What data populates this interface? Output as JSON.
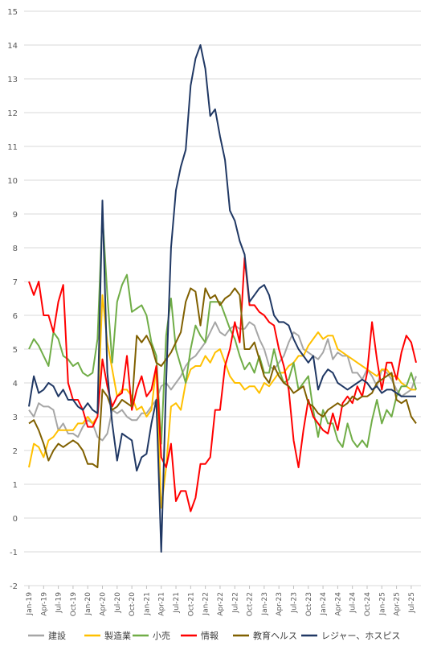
{
  "chart_data": {
    "type": "line",
    "title": "",
    "xlabel": "",
    "ylabel": "",
    "ylim": [
      -2,
      15
    ],
    "yticks": [
      -2,
      -1,
      0,
      1,
      2,
      3,
      4,
      5,
      6,
      7,
      8,
      9,
      10,
      11,
      12,
      13,
      14,
      15
    ],
    "grid": "horizontal",
    "legend": "bottom",
    "x": [
      "2019-01",
      "2019-02",
      "2019-03",
      "2019-04",
      "2019-05",
      "2019-06",
      "2019-07",
      "2019-08",
      "2019-09",
      "2019-10",
      "2019-11",
      "2019-12",
      "2020-01",
      "2020-02",
      "2020-03",
      "2020-04",
      "2020-05",
      "2020-06",
      "2020-07",
      "2020-08",
      "2020-09",
      "2020-10",
      "2020-11",
      "2020-12",
      "2021-01",
      "2021-02",
      "2021-03",
      "2021-04",
      "2021-05",
      "2021-06",
      "2021-07",
      "2021-08",
      "2021-09",
      "2021-10",
      "2021-11",
      "2021-12",
      "2022-01",
      "2022-02",
      "2022-03",
      "2022-04",
      "2022-05",
      "2022-06",
      "2022-07",
      "2022-08",
      "2022-09",
      "2022-10",
      "2022-11",
      "2022-12",
      "2023-01",
      "2023-02",
      "2023-03",
      "2023-04",
      "2023-05",
      "2023-06",
      "2023-07",
      "2023-08",
      "2023-09",
      "2023-10",
      "2023-11",
      "2023-12",
      "2024-01",
      "2024-02",
      "2024-03",
      "2024-04",
      "2024-05",
      "2024-06",
      "2024-07",
      "2024-08",
      "2024-09",
      "2024-10",
      "2024-11",
      "2024-12",
      "2025-01",
      "2025-02",
      "2025-03",
      "2025-04",
      "2025-05",
      "2025-06",
      "2025-07",
      "2025-08"
    ],
    "xtick_labels": [
      "Jan-19",
      "Apr-19",
      "Jul-19",
      "Oct-19",
      "Jan-20",
      "Apr-20",
      "Jul-20",
      "Oct-20",
      "Jan-21",
      "Apr-21",
      "Jul-21",
      "Oct-21",
      "Jan-22",
      "Apr-22",
      "Jul-22",
      "Oct-22",
      "Jan-23",
      "Apr-23",
      "Jul-23",
      "Oct-23",
      "Jan-24",
      "Apr-24",
      "Jul-24",
      "Oct-24",
      "Jan-25",
      "Apr-25",
      "Jul-25"
    ],
    "series": [
      {
        "name": "建設",
        "color": "#a6a6a6",
        "values": [
          3.2,
          3.0,
          3.4,
          3.3,
          3.3,
          3.2,
          2.6,
          2.8,
          2.5,
          2.5,
          2.4,
          2.7,
          2.9,
          2.8,
          2.4,
          2.3,
          2.5,
          3.2,
          3.1,
          3.2,
          3.0,
          2.9,
          2.9,
          3.1,
          3.1,
          3.3,
          3.5,
          3.9,
          4.0,
          3.8,
          4.0,
          4.2,
          4.5,
          4.7,
          4.8,
          5.0,
          5.2,
          5.5,
          5.8,
          5.5,
          5.4,
          5.6,
          5.7,
          5.6,
          5.6,
          5.8,
          5.7,
          5.3,
          5.0,
          4.5,
          4.4,
          4.6,
          4.8,
          5.2,
          5.5,
          5.4,
          5.0,
          4.9,
          4.8,
          4.7,
          4.9,
          5.3,
          4.7,
          4.9,
          4.8,
          4.8,
          4.3,
          4.3,
          4.1,
          4.4,
          4.2,
          3.9,
          4.4,
          4.3,
          4.1,
          3.8,
          3.6,
          3.7,
          3.8,
          4.2
        ]
      },
      {
        "name": "製造業",
        "color": "#ffc000",
        "values": [
          1.5,
          2.2,
          2.1,
          1.8,
          2.3,
          2.4,
          2.6,
          2.6,
          2.6,
          2.6,
          2.8,
          2.8,
          3.0,
          2.8,
          3.0,
          6.6,
          5.2,
          4.4,
          3.6,
          3.8,
          3.8,
          3.6,
          3.2,
          3.3,
          3.0,
          3.2,
          4.5,
          0.3,
          1.5,
          3.3,
          3.4,
          3.2,
          4.0,
          4.4,
          4.5,
          4.5,
          4.8,
          4.6,
          4.9,
          5.0,
          4.6,
          4.2,
          4.0,
          4.0,
          3.8,
          3.9,
          3.9,
          3.7,
          4.0,
          3.9,
          4.1,
          4.3,
          4.3,
          4.5,
          4.6,
          4.8,
          4.8,
          5.1,
          5.3,
          5.5,
          5.3,
          5.4,
          5.4,
          5.0,
          4.9,
          4.8,
          4.7,
          4.6,
          4.5,
          4.4,
          4.3,
          4.2,
          4.4,
          4.4,
          4.2,
          4.2,
          4.0,
          3.9,
          3.8,
          3.8
        ]
      },
      {
        "name": "小売",
        "color": "#70ad47",
        "values": [
          5.0,
          5.3,
          5.1,
          4.8,
          4.5,
          5.5,
          5.3,
          4.8,
          4.7,
          4.5,
          4.6,
          4.3,
          4.2,
          4.3,
          5.3,
          9.0,
          6.6,
          4.6,
          6.4,
          6.9,
          7.2,
          6.1,
          6.2,
          6.3,
          6.0,
          5.2,
          4.8,
          2.2,
          5.4,
          6.5,
          5.0,
          4.5,
          4.0,
          5.0,
          5.7,
          5.4,
          5.2,
          6.4,
          6.4,
          6.4,
          6.0,
          5.6,
          5.3,
          4.8,
          4.4,
          4.6,
          4.3,
          4.8,
          4.3,
          4.3,
          5.0,
          4.4,
          4.0,
          4.1,
          4.6,
          3.8,
          4.0,
          4.2,
          3.2,
          2.4,
          3.2,
          2.8,
          2.8,
          2.3,
          2.1,
          2.8,
          2.3,
          2.1,
          2.3,
          2.1,
          2.9,
          3.5,
          2.8,
          3.2,
          3.0,
          3.6,
          3.9,
          3.9,
          4.3,
          3.8
        ]
      },
      {
        "name": "情報",
        "color": "#ff0000",
        "values": [
          7.0,
          6.6,
          7.0,
          6.0,
          6.0,
          5.5,
          6.4,
          6.9,
          4.0,
          3.5,
          3.5,
          3.2,
          2.7,
          2.7,
          3.0,
          4.7,
          3.9,
          3.3,
          3.6,
          3.7,
          4.8,
          3.2,
          3.8,
          4.2,
          3.6,
          3.8,
          4.5,
          1.8,
          1.5,
          2.2,
          0.5,
          0.8,
          0.8,
          0.2,
          0.6,
          1.6,
          1.6,
          1.8,
          3.2,
          3.2,
          4.5,
          5.0,
          5.8,
          5.2,
          7.7,
          6.3,
          6.3,
          6.1,
          6.0,
          5.8,
          5.7,
          5.0,
          4.5,
          3.8,
          2.3,
          1.5,
          2.6,
          3.5,
          3.0,
          2.8,
          2.6,
          2.5,
          3.1,
          2.6,
          3.4,
          3.6,
          3.4,
          3.9,
          3.6,
          4.3,
          5.8,
          4.7,
          3.8,
          4.6,
          4.6,
          4.1,
          4.9,
          5.4,
          5.2,
          4.6
        ]
      },
      {
        "name": "教育ヘルス",
        "color": "#806000",
        "values": [
          2.8,
          2.9,
          2.6,
          2.2,
          1.7,
          2.0,
          2.2,
          2.1,
          2.2,
          2.3,
          2.2,
          2.0,
          1.6,
          1.6,
          1.5,
          3.8,
          3.6,
          3.2,
          3.3,
          3.5,
          3.4,
          3.3,
          5.4,
          5.2,
          5.4,
          5.1,
          4.6,
          4.5,
          4.7,
          4.9,
          5.2,
          5.5,
          6.4,
          6.8,
          6.7,
          5.7,
          6.8,
          6.5,
          6.6,
          6.3,
          6.5,
          6.6,
          6.8,
          6.6,
          5.0,
          5.0,
          5.2,
          4.7,
          4.2,
          4.0,
          4.5,
          4.2,
          4.0,
          3.9,
          3.7,
          3.8,
          3.9,
          3.4,
          3.3,
          3.1,
          3.0,
          3.2,
          3.3,
          3.4,
          3.3,
          3.4,
          3.6,
          3.5,
          3.6,
          3.6,
          3.7,
          4.0,
          4.1,
          4.2,
          4.3,
          3.5,
          3.4,
          3.5,
          3.0,
          2.8
        ]
      },
      {
        "name": "レジャー、ホスピス",
        "color": "#203864",
        "values": [
          3.3,
          4.2,
          3.7,
          3.8,
          4.0,
          3.9,
          3.6,
          3.8,
          3.5,
          3.5,
          3.3,
          3.2,
          3.4,
          3.2,
          3.1,
          9.4,
          4.3,
          2.8,
          1.7,
          2.5,
          2.4,
          2.3,
          1.4,
          1.8,
          1.9,
          2.8,
          3.5,
          -1.0,
          4.0,
          8.0,
          9.7,
          10.4,
          10.9,
          12.8,
          13.6,
          14.0,
          13.3,
          11.9,
          12.1,
          11.3,
          10.6,
          9.1,
          8.8,
          8.2,
          7.8,
          6.4,
          6.6,
          6.8,
          6.9,
          6.6,
          6.0,
          5.8,
          5.8,
          5.7,
          5.3,
          5.0,
          4.8,
          4.6,
          4.8,
          3.8,
          4.2,
          4.4,
          4.3,
          4.0,
          3.9,
          3.8,
          3.9,
          4.0,
          4.1,
          4.0,
          3.8,
          3.9,
          3.7,
          3.8,
          3.8,
          3.7,
          3.6,
          3.6,
          3.6,
          3.6
        ]
      }
    ]
  }
}
